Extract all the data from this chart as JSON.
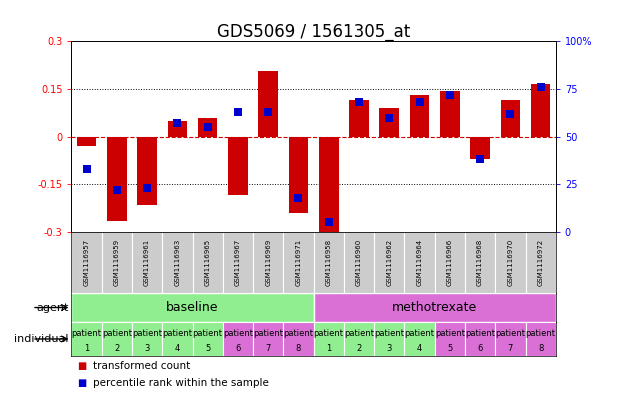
{
  "title": "GDS5069 / 1561305_at",
  "samples": [
    "GSM1116957",
    "GSM1116959",
    "GSM1116961",
    "GSM1116963",
    "GSM1116965",
    "GSM1116967",
    "GSM1116969",
    "GSM1116971",
    "GSM1116958",
    "GSM1116960",
    "GSM1116962",
    "GSM1116964",
    "GSM1116966",
    "GSM1116968",
    "GSM1116970",
    "GSM1116972"
  ],
  "transformed_count": [
    -0.03,
    -0.265,
    -0.215,
    0.05,
    0.06,
    -0.185,
    0.205,
    -0.24,
    -0.3,
    0.115,
    0.09,
    0.13,
    0.145,
    -0.07,
    0.115,
    0.165
  ],
  "percentile_rank": [
    33,
    22,
    23,
    57,
    55,
    63,
    63,
    18,
    5,
    68,
    60,
    68,
    72,
    38,
    62,
    76
  ],
  "ylim_left": [
    -0.3,
    0.3
  ],
  "ylim_right": [
    0,
    100
  ],
  "yticks_left": [
    -0.3,
    -0.15,
    0,
    0.15,
    0.3
  ],
  "yticks_right": [
    0,
    25,
    50,
    75,
    100
  ],
  "agent_groups": [
    {
      "label": "baseline",
      "color": "#90ee90",
      "start": 0,
      "end": 8
    },
    {
      "label": "methotrexate",
      "color": "#da70d6",
      "start": 8,
      "end": 16
    }
  ],
  "individual_colors": [
    "#90ee90",
    "#90ee90",
    "#90ee90",
    "#90ee90",
    "#90ee90",
    "#da70d6",
    "#da70d6",
    "#da70d6",
    "#90ee90",
    "#90ee90",
    "#90ee90",
    "#90ee90",
    "#da70d6",
    "#da70d6",
    "#da70d6",
    "#da70d6"
  ],
  "patient_nums": [
    1,
    2,
    3,
    4,
    5,
    6,
    7,
    8,
    1,
    2,
    3,
    4,
    5,
    6,
    7,
    8
  ],
  "bar_color": "#cc0000",
  "dot_color": "#0000cc",
  "bar_width": 0.65,
  "dot_size": 28,
  "gsm_bg": "#cccccc",
  "title_fontsize": 12,
  "tick_fontsize": 7,
  "label_fontsize": 8,
  "agent_fontsize": 9,
  "patient_fontsize": 6,
  "gsm_fontsize": 5.0,
  "legend_fontsize": 7.5
}
